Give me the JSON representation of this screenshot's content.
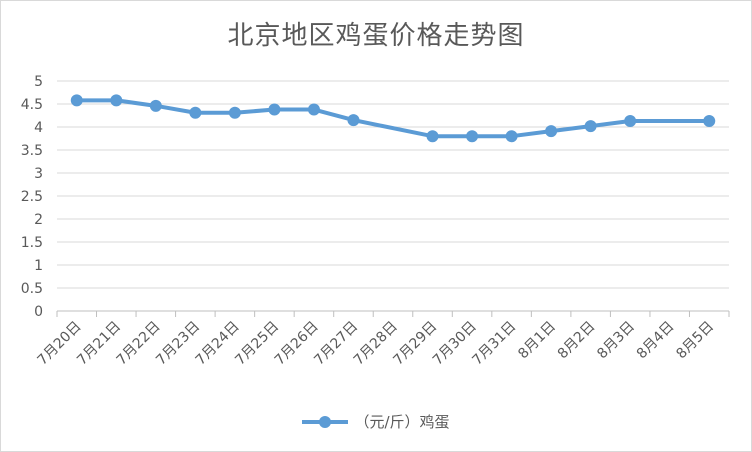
{
  "chart_data": {
    "type": "line",
    "title": "北京地区鸡蛋价格走势图",
    "xlabel": "",
    "ylabel": "",
    "ylim": [
      0,
      5
    ],
    "yticks": [
      "0",
      "0.5",
      "1",
      "1.5",
      "2",
      "2.5",
      "3",
      "3.5",
      "4",
      "4.5",
      "5"
    ],
    "grid": true,
    "legend_position": "bottom",
    "categories": [
      "7月20日",
      "7月21日",
      "7月22日",
      "7月23日",
      "7月24日",
      "7月25日",
      "7月26日",
      "7月27日",
      "7月28日",
      "7月29日",
      "7月30日",
      "7月31日",
      "8月1日",
      "8月2日",
      "8月3日",
      "8月4日",
      "8月5日"
    ],
    "series": [
      {
        "name": "（元/斤）鸡蛋",
        "color": "#5b9bd5",
        "x": [
          "7月20日",
          "7月21日",
          "7月22日",
          "7月23日",
          "7月24日",
          "7月25日",
          "7月26日",
          "7月27日",
          "7月29日",
          "7月30日",
          "7月31日",
          "8月1日",
          "8月2日",
          "8月3日",
          "8月5日"
        ],
        "values": [
          4.58,
          4.58,
          4.46,
          4.31,
          4.31,
          4.38,
          4.38,
          4.15,
          3.8,
          3.8,
          3.8,
          3.91,
          4.02,
          4.13,
          4.13
        ]
      }
    ]
  }
}
